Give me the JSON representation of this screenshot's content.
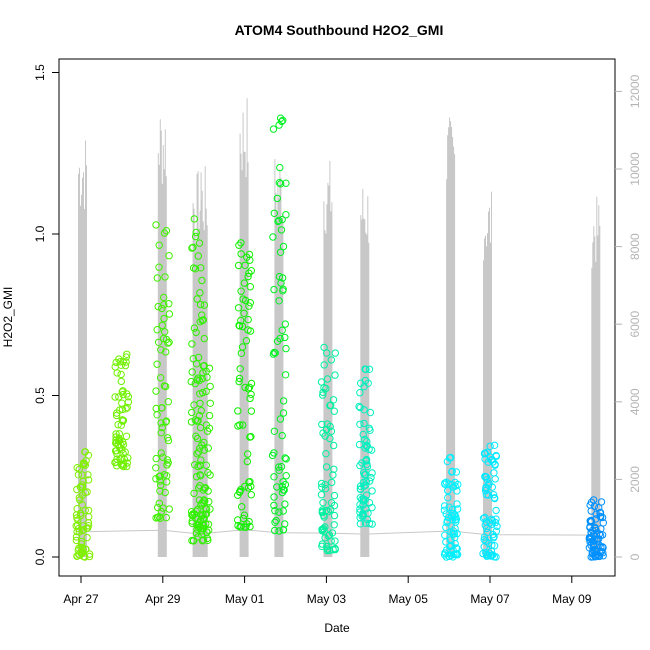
{
  "chart_data": {
    "type": "scatter",
    "title": "ATOM4 Southbound H2O2_GMI",
    "xlabel": "Date",
    "ylabel": "H2O2_GMI",
    "xlim": [
      "2017-04-26 18:00",
      "2017-05-09 22:00"
    ],
    "ylim": [
      0,
      1.55
    ],
    "y2lim": [
      0,
      12400
    ],
    "x_ticks": [
      "Apr 27",
      "Apr 29",
      "May 01",
      "May 03",
      "May 05",
      "May 07",
      "May 09"
    ],
    "y_ticks": [
      "0.0",
      "0.5",
      "1.0",
      "1.5"
    ],
    "y2_ticks": [
      "0",
      "2000",
      "4000",
      "6000",
      "8000",
      "10000",
      "12000"
    ],
    "grid": false,
    "legend": "none",
    "point_clusters": [
      {
        "day": 0.05,
        "min": 0.0,
        "max": 0.33,
        "color": "#80f000"
      },
      {
        "day": 1.0,
        "min": 0.28,
        "max": 0.63,
        "color": "#70f000"
      },
      {
        "day": 2.0,
        "min": 0.12,
        "max": 1.03,
        "color": "#40f000"
      },
      {
        "day": 2.85,
        "min": 0.05,
        "max": 1.07,
        "color": "#30f000"
      },
      {
        "day": 3.0,
        "min": 0.05,
        "max": 0.6,
        "color": "#30f000"
      },
      {
        "day": 4.0,
        "min": 0.09,
        "max": 1.02,
        "color": "#10f000"
      },
      {
        "day": 4.85,
        "min": 0.08,
        "max": 1.48,
        "color": "#00f020"
      },
      {
        "day": 6.05,
        "min": 0.02,
        "max": 0.67,
        "color": "#00f0a0"
      },
      {
        "day": 6.95,
        "min": 0.1,
        "max": 0.59,
        "color": "#00f0c0"
      },
      {
        "day": 9.05,
        "min": 0.0,
        "max": 0.32,
        "color": "#00f0ff"
      },
      {
        "day": 10.0,
        "min": 0.0,
        "max": 0.35,
        "color": "#00e8ff"
      },
      {
        "day": 12.6,
        "min": 0.0,
        "max": 0.18,
        "color": "#0090ff"
      }
    ],
    "altitude_flights": [
      {
        "day": 0.05,
        "max": 11000
      },
      {
        "day": 2.0,
        "max": 11800
      },
      {
        "day": 2.85,
        "max": 10000
      },
      {
        "day": 3.0,
        "max": 10100
      },
      {
        "day": 4.0,
        "max": 12000
      },
      {
        "day": 4.85,
        "max": 10500
      },
      {
        "day": 6.05,
        "max": 10300
      },
      {
        "day": 6.95,
        "max": 9800
      },
      {
        "day": 9.05,
        "max": 11400
      },
      {
        "day": 9.95,
        "max": 9500
      },
      {
        "day": 12.6,
        "max": 9300
      }
    ]
  }
}
